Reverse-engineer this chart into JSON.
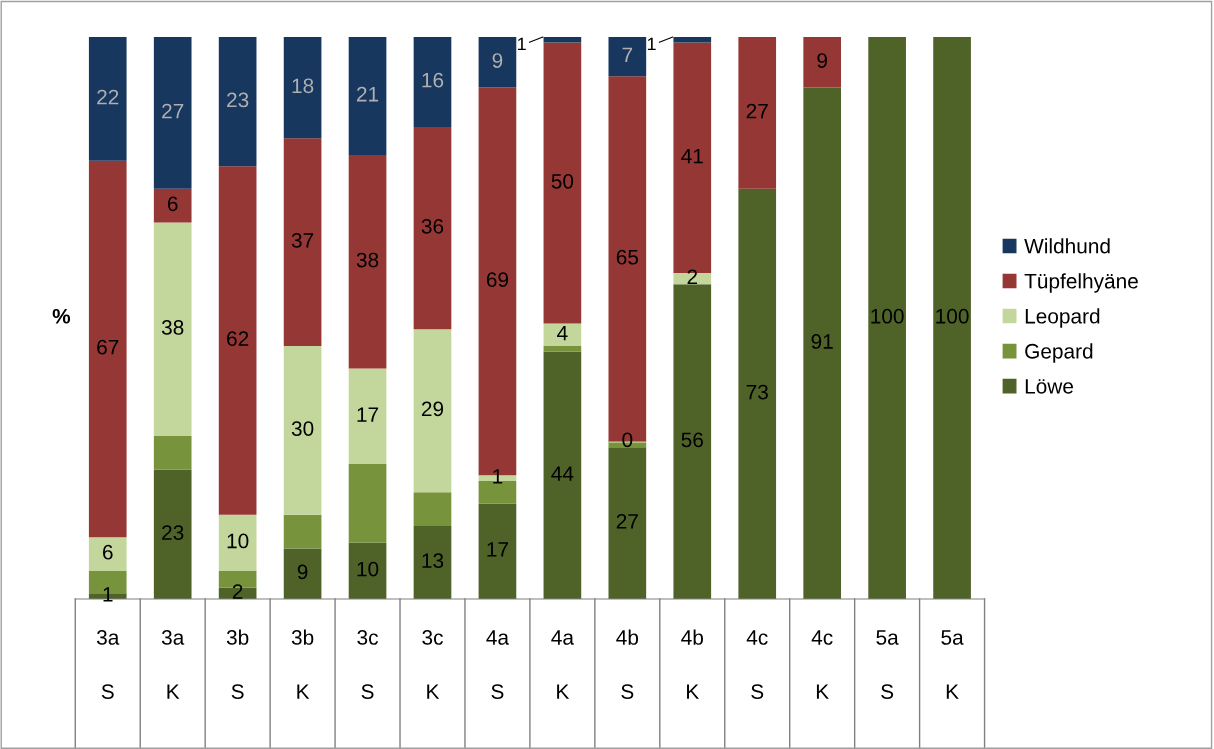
{
  "chart_data": {
    "type": "bar",
    "stacked": true,
    "ylabel": "%",
    "ylim": [
      0,
      100
    ],
    "tick_labels": "x",
    "grid": false,
    "legend": "right",
    "data_labels": false,
    "categories": [
      "3a\nS",
      "3a\nK",
      "3b\nS",
      "3b\nK",
      "3c\nS",
      "3c\nK",
      "4a\nS",
      "4a\nK",
      "4b\nS",
      "4b\nK",
      "4c\nS",
      "4c\nK",
      "5a\nS",
      "5a\nK"
    ],
    "series": [
      {
        "name": "Löwe",
        "color": "#4f6228",
        "values": [
          1,
          23,
          2,
          9,
          10,
          13,
          17,
          44,
          27,
          56,
          73,
          91,
          100,
          100
        ],
        "value_labels": [
          "1",
          "23",
          "2",
          "9",
          "10",
          "13",
          "17",
          "44",
          "27",
          "56",
          "73",
          "91",
          "100",
          "100"
        ]
      },
      {
        "name": "Gepard",
        "color": "#77933c",
        "values": [
          4,
          6,
          3,
          6,
          14,
          6,
          4,
          1,
          1,
          0,
          0,
          0,
          0,
          0
        ],
        "value_labels": [
          null,
          null,
          null,
          null,
          null,
          null,
          null,
          null,
          null,
          null,
          null,
          null,
          null,
          null
        ]
      },
      {
        "name": "Leopard",
        "color": "#c3d69b",
        "values": [
          6,
          38,
          10,
          30,
          17,
          29,
          1,
          4,
          0,
          2,
          0,
          0,
          0,
          0
        ],
        "value_labels": [
          "6",
          "38",
          "10",
          "30",
          "17",
          "29",
          "1",
          "4",
          "0",
          "2",
          null,
          null,
          null,
          null
        ]
      },
      {
        "name": "Tüpfelhyäne",
        "color": "#953735",
        "values": [
          67,
          6,
          62,
          37,
          38,
          36,
          69,
          50,
          65,
          41,
          27,
          9,
          0,
          0
        ],
        "value_labels": [
          "67",
          "6",
          "62",
          "37",
          "38",
          "36",
          "69",
          "50",
          "65",
          "41",
          "27",
          "9",
          null,
          null
        ]
      },
      {
        "name": "Wildhund",
        "color": "#17375e",
        "values": [
          22,
          27,
          23,
          18,
          21,
          16,
          9,
          1,
          7,
          1,
          0,
          0,
          0,
          0
        ],
        "value_labels": [
          "22",
          "27",
          "23",
          "18",
          "21",
          "16",
          "9",
          "1",
          "7",
          "1",
          null,
          null,
          null,
          null
        ]
      }
    ]
  }
}
